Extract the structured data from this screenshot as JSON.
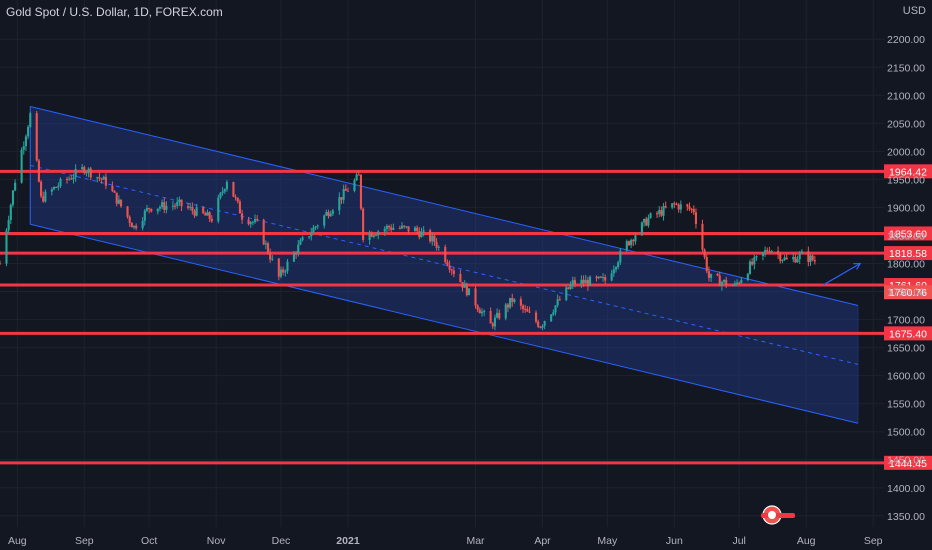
{
  "header": {
    "title": "Gold Spot / U.S. Dollar, 1D, FOREX.com",
    "currency": "USD"
  },
  "colors": {
    "background": "#131722",
    "axis_text": "#b2b5be",
    "up_candle": "#26a69a",
    "down_candle": "#ef5350",
    "channel_fill": "#1e3a8a",
    "channel_line": "#2962ff",
    "level_line": "#f23645",
    "grid": "#1e222d"
  },
  "chart_data": {
    "type": "candlestick",
    "title": "Gold Spot / U.S. Dollar, 1D, FOREX.com",
    "ylabel": "USD",
    "ylim": [
      1330,
      2270
    ],
    "y_ticks": [
      "2200.00",
      "2150.00",
      "2100.00",
      "2050.00",
      "2000.00",
      "1950.00",
      "1900.00",
      "1850.00",
      "1800.00",
      "1750.00",
      "1700.00",
      "1650.00",
      "1600.00",
      "1550.00",
      "1500.00",
      "1450.00",
      "1400.00",
      "1350.00"
    ],
    "x_ticks": [
      "Aug",
      "Sep",
      "Oct",
      "Nov",
      "Dec",
      "2021",
      "Mar",
      "Apr",
      "May",
      "Jun",
      "Jul",
      "Aug",
      "Sep"
    ],
    "xlim": [
      "2020-07-24",
      "2021-09-06"
    ],
    "grid": true,
    "levels": [
      {
        "price": 1964.42,
        "label": "1964.42"
      },
      {
        "price": 1853.6,
        "label": "1853.60"
      },
      {
        "price": 1818.58,
        "label": "1818.58"
      },
      {
        "price": 1761.6,
        "label": "1761.60"
      },
      {
        "price": 1675.4,
        "label": "1675.40"
      },
      {
        "price": 1444.45,
        "label": "1444.45"
      }
    ],
    "price_label": {
      "price": 1760.76,
      "label": "1760.76"
    },
    "channel": {
      "upper": [
        [
          "2020-08-07",
          2080
        ],
        [
          "2021-08-25",
          1725
        ]
      ],
      "lower": [
        [
          "2020-08-07",
          1870
        ],
        [
          "2021-08-25",
          1515
        ]
      ],
      "mid": [
        [
          "2020-08-07",
          1975
        ],
        [
          "2021-08-25",
          1620
        ]
      ]
    },
    "arrow": [
      [
        "2021-08-09",
        1762
      ],
      [
        "2021-08-26",
        1800
      ]
    ],
    "ohlc_anchor_points": [
      [
        "2020-07-24",
        1800
      ],
      [
        "2020-08-01",
        1970
      ],
      [
        "2020-08-07",
        2065
      ],
      [
        "2020-08-12",
        1915
      ],
      [
        "2020-08-20",
        1940
      ],
      [
        "2020-09-01",
        1970
      ],
      [
        "2020-09-11",
        1945
      ],
      [
        "2020-09-24",
        1865
      ],
      [
        "2020-10-01",
        1900
      ],
      [
        "2020-10-15",
        1905
      ],
      [
        "2020-10-30",
        1880
      ],
      [
        "2020-11-06",
        1950
      ],
      [
        "2020-11-13",
        1885
      ],
      [
        "2020-11-20",
        1870
      ],
      [
        "2020-11-30",
        1775
      ],
      [
        "2020-12-10",
        1835
      ],
      [
        "2020-12-20",
        1880
      ],
      [
        "2021-01-06",
        1955
      ],
      [
        "2021-01-08",
        1850
      ],
      [
        "2021-01-20",
        1865
      ],
      [
        "2021-02-01",
        1860
      ],
      [
        "2021-02-10",
        1840
      ],
      [
        "2021-02-20",
        1780
      ],
      [
        "2021-03-01",
        1730
      ],
      [
        "2021-03-08",
        1690
      ],
      [
        "2021-03-18",
        1735
      ],
      [
        "2021-03-31",
        1690
      ],
      [
        "2021-04-15",
        1765
      ],
      [
        "2021-04-30",
        1770
      ],
      [
        "2021-05-10",
        1835
      ],
      [
        "2021-05-20",
        1880
      ],
      [
        "2021-06-01",
        1905
      ],
      [
        "2021-06-10",
        1895
      ],
      [
        "2021-06-17",
        1775
      ],
      [
        "2021-06-29",
        1760
      ],
      [
        "2021-07-06",
        1795
      ],
      [
        "2021-07-15",
        1828
      ],
      [
        "2021-07-23",
        1805
      ],
      [
        "2021-07-30",
        1815
      ],
      [
        "2021-08-05",
        1805
      ],
      [
        "2021-08-06",
        1762
      ]
    ]
  }
}
